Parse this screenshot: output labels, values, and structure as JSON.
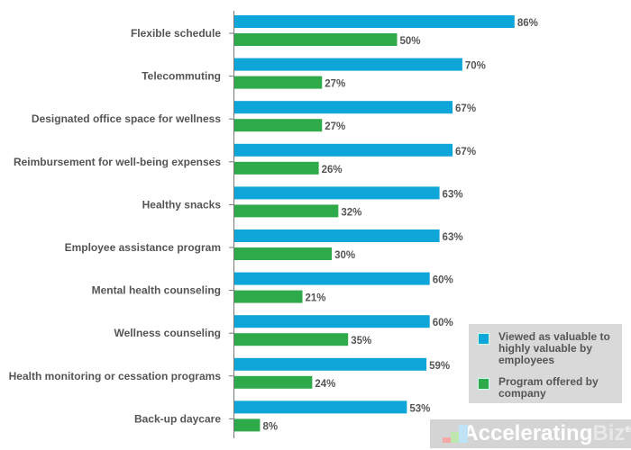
{
  "chart_data": {
    "type": "bar",
    "orientation": "horizontal",
    "categories": [
      "Flexible schedule",
      "Telecommuting",
      "Designated office space for wellness",
      "Reimbursement for well-being expenses",
      "Healthy snacks",
      "Employee assistance program",
      "Mental health counseling",
      "Wellness counseling",
      "Health monitoring or cessation programs",
      "Back-up daycare"
    ],
    "series": [
      {
        "name": "Viewed as valuable to highly valuable by employees",
        "color": "#0ea5d8",
        "values": [
          86,
          70,
          67,
          67,
          63,
          63,
          60,
          60,
          59,
          53
        ]
      },
      {
        "name": "Program offered by company",
        "color": "#2eaa4a",
        "values": [
          50,
          27,
          27,
          26,
          32,
          30,
          21,
          35,
          24,
          8
        ]
      }
    ],
    "value_suffix": "%",
    "xlim": [
      0,
      100
    ],
    "grid": false,
    "legend_position": "bottom-right"
  },
  "legend": {
    "line1": "Viewed as valuable to",
    "line2": "highly valuable by",
    "line3": "employees",
    "line4": "Program offered by",
    "line5": "company"
  },
  "logo": {
    "text_main": "Accelerating",
    "text_biz": "Biz",
    "mark": "®"
  }
}
